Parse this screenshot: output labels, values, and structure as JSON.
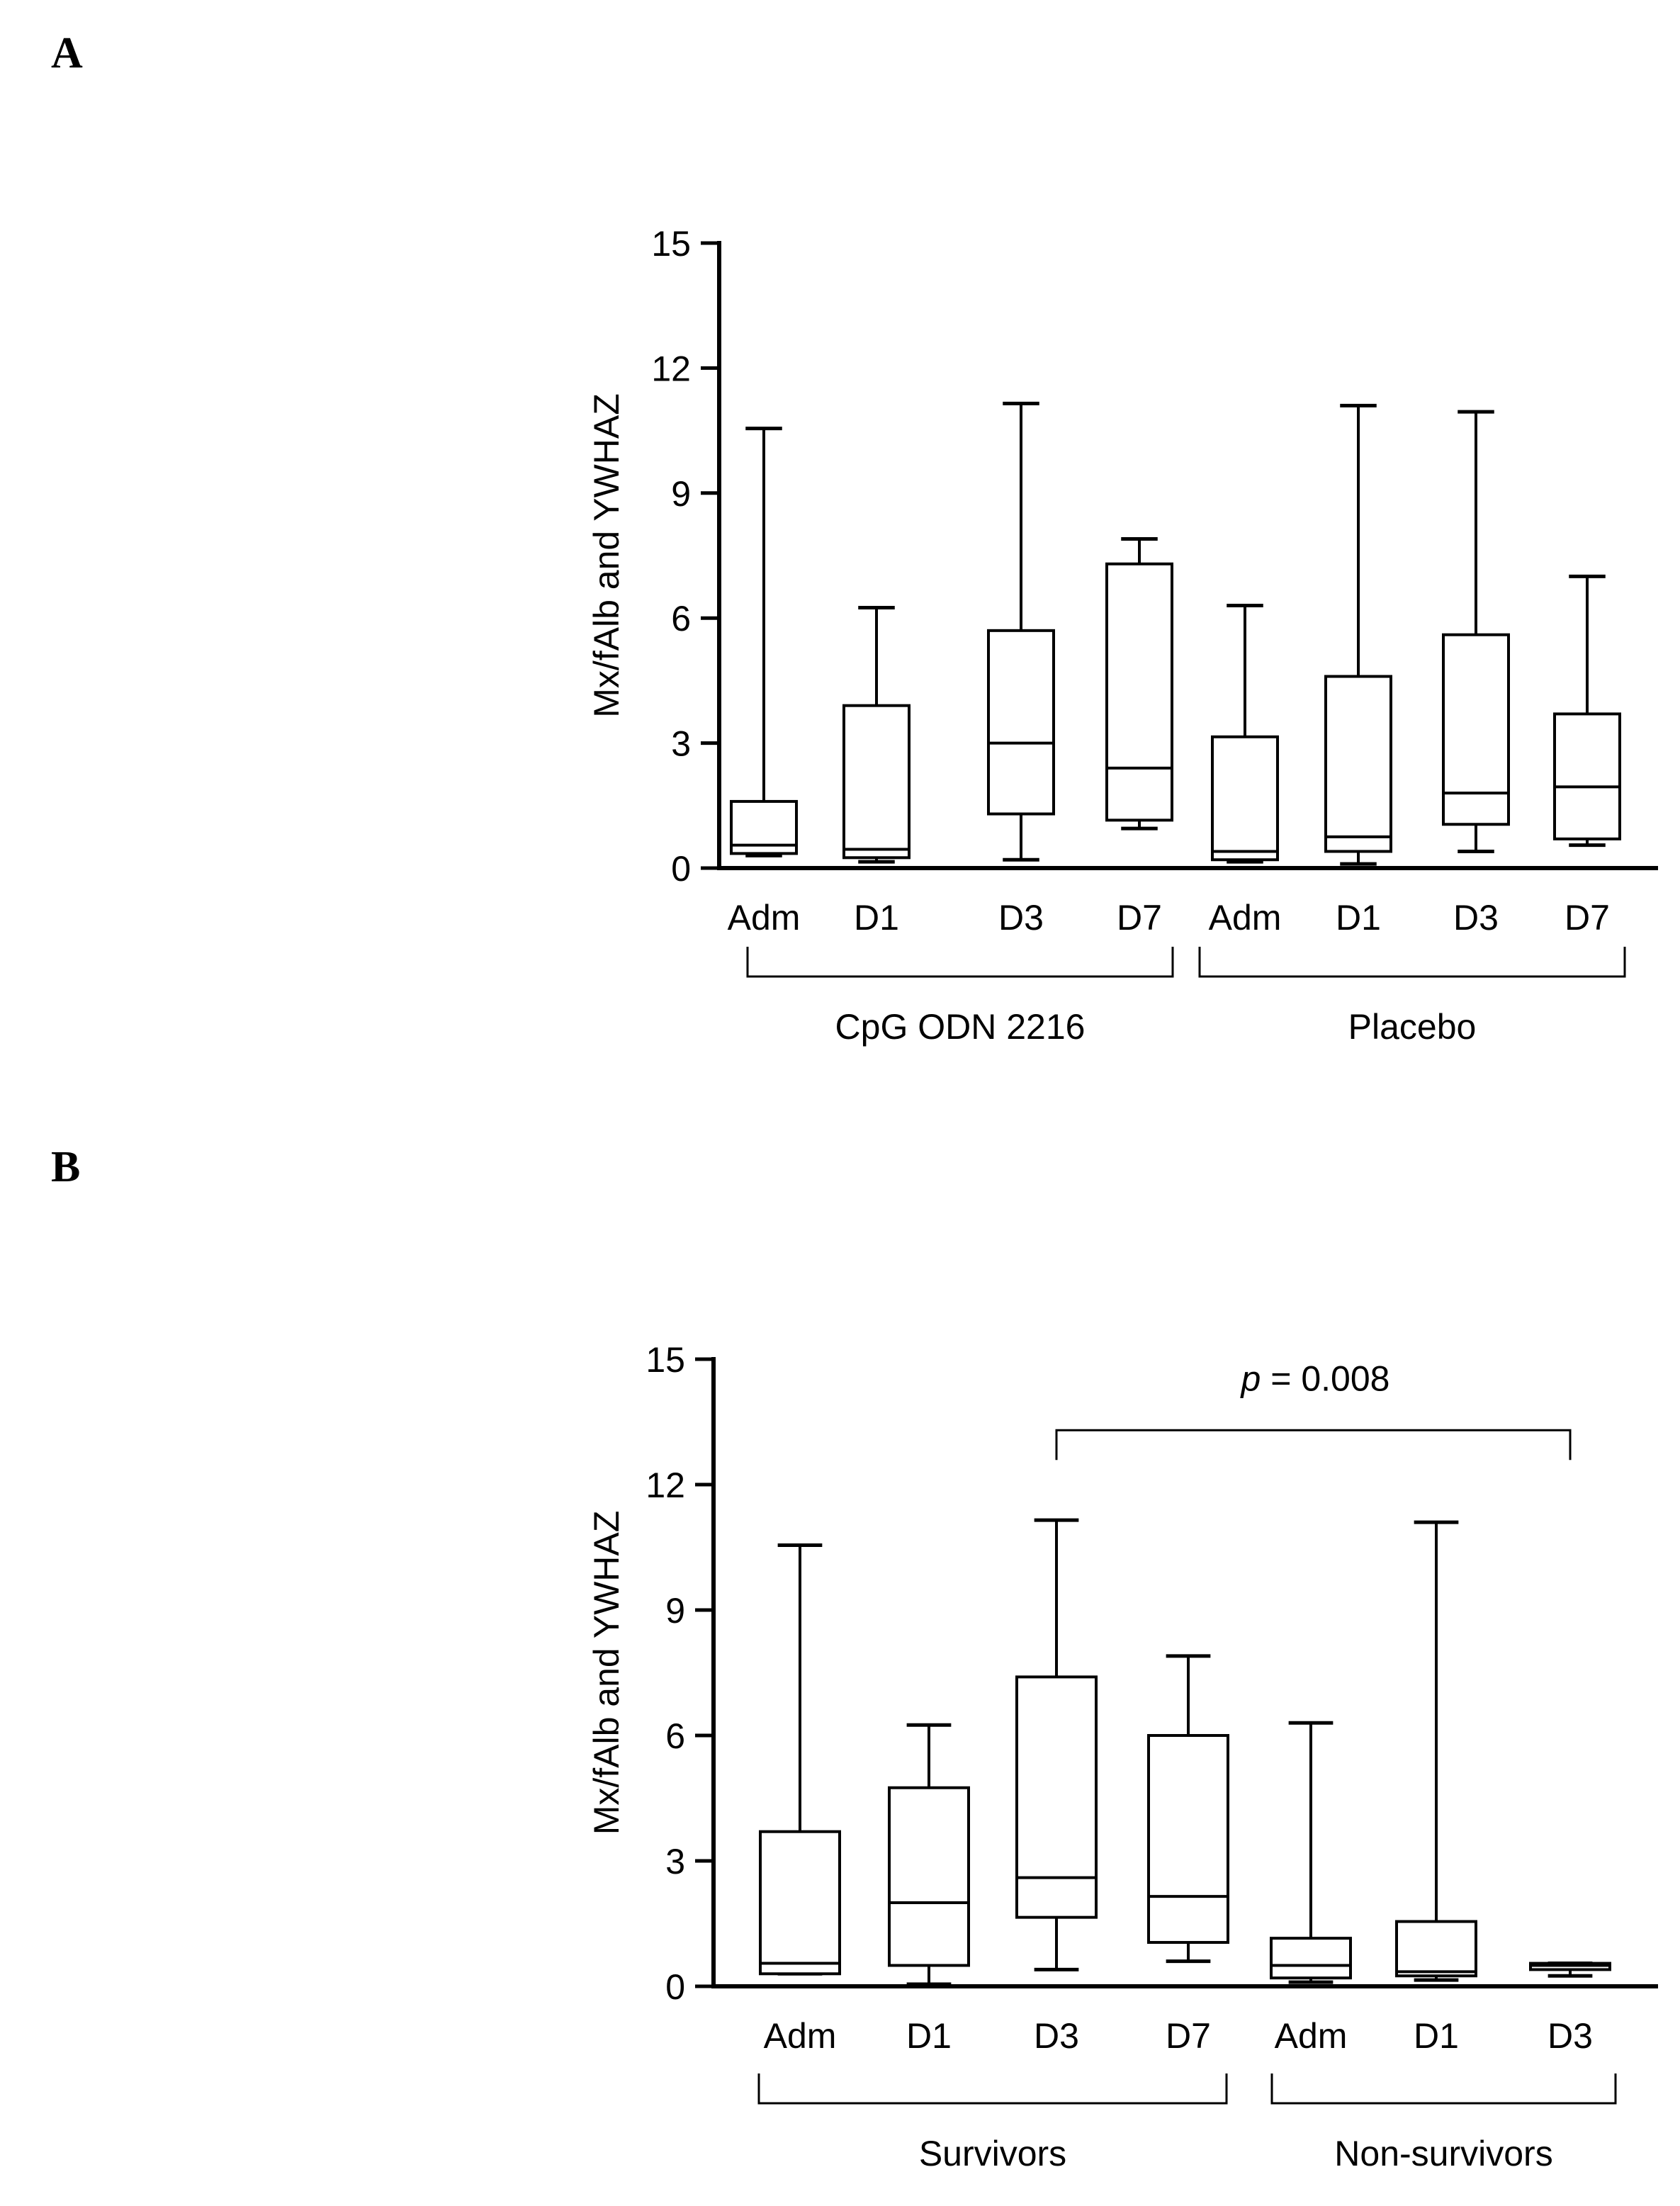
{
  "panels": [
    {
      "label": "A"
    },
    {
      "label": "B"
    }
  ],
  "chart_data": [
    {
      "type": "box",
      "panel": "A",
      "title": "",
      "xlabel": "",
      "ylabel": "Mx/fAlb and YWHAZ",
      "ylim": [
        0,
        15
      ],
      "yticks": [
        0,
        3,
        6,
        9,
        12,
        15
      ],
      "categories": [
        "Adm",
        "D1",
        "D3",
        "D7",
        "Adm",
        "D1",
        "D3",
        "D7"
      ],
      "groups": [
        {
          "name": "CpG ODN 2216",
          "categories": [
            0,
            1,
            2,
            3
          ]
        },
        {
          "name": "Placebo",
          "categories": [
            4,
            5,
            6,
            7
          ]
        }
      ],
      "boxes": [
        {
          "min": 0.3,
          "q1": 0.35,
          "median": 0.55,
          "q3": 1.6,
          "max": 10.55
        },
        {
          "min": 0.15,
          "q1": 0.25,
          "median": 0.45,
          "q3": 3.9,
          "max": 6.25
        },
        {
          "min": 0.2,
          "q1": 1.3,
          "median": 3.0,
          "q3": 5.7,
          "max": 11.15
        },
        {
          "min": 0.95,
          "q1": 1.15,
          "median": 2.4,
          "q3": 7.3,
          "max": 7.9
        },
        {
          "min": 0.15,
          "q1": 0.2,
          "median": 0.4,
          "q3": 3.15,
          "max": 6.3
        },
        {
          "min": 0.1,
          "q1": 0.4,
          "median": 0.75,
          "q3": 4.6,
          "max": 11.1
        },
        {
          "min": 0.4,
          "q1": 1.05,
          "median": 1.8,
          "q3": 5.6,
          "max": 10.95
        },
        {
          "min": 0.55,
          "q1": 0.7,
          "median": 1.95,
          "q3": 3.7,
          "max": 7.0
        }
      ]
    },
    {
      "type": "box",
      "panel": "B",
      "title": "",
      "xlabel": "",
      "ylabel": "Mx/fAlb and YWHAZ",
      "ylim": [
        0,
        15
      ],
      "yticks": [
        0,
        3,
        6,
        9,
        12,
        15
      ],
      "categories": [
        "Adm",
        "D1",
        "D3",
        "D7",
        "Adm",
        "D1",
        "D3"
      ],
      "groups": [
        {
          "name": "Survivors",
          "categories": [
            0,
            1,
            2,
            3
          ]
        },
        {
          "name": "Non-survivors",
          "categories": [
            4,
            5,
            6
          ]
        }
      ],
      "boxes": [
        {
          "min": 0.3,
          "q1": 0.3,
          "median": 0.55,
          "q3": 3.7,
          "max": 10.55
        },
        {
          "min": 0.05,
          "q1": 0.5,
          "median": 2.0,
          "q3": 4.75,
          "max": 6.25
        },
        {
          "min": 0.4,
          "q1": 1.65,
          "median": 2.6,
          "q3": 7.4,
          "max": 11.15
        },
        {
          "min": 0.6,
          "q1": 1.05,
          "median": 2.15,
          "q3": 6.0,
          "max": 7.9
        },
        {
          "min": 0.1,
          "q1": 0.2,
          "median": 0.5,
          "q3": 1.15,
          "max": 6.3
        },
        {
          "min": 0.15,
          "q1": 0.25,
          "median": 0.35,
          "q3": 1.55,
          "max": 11.1
        },
        {
          "min": 0.25,
          "q1": 0.4,
          "median": 0.5,
          "q3": 0.55,
          "max": 0.55
        }
      ],
      "annotations": [
        {
          "text_italic": "p",
          "text": " = 0.008",
          "from_category": 2,
          "to_category": 6,
          "y": 13.3
        }
      ]
    }
  ]
}
